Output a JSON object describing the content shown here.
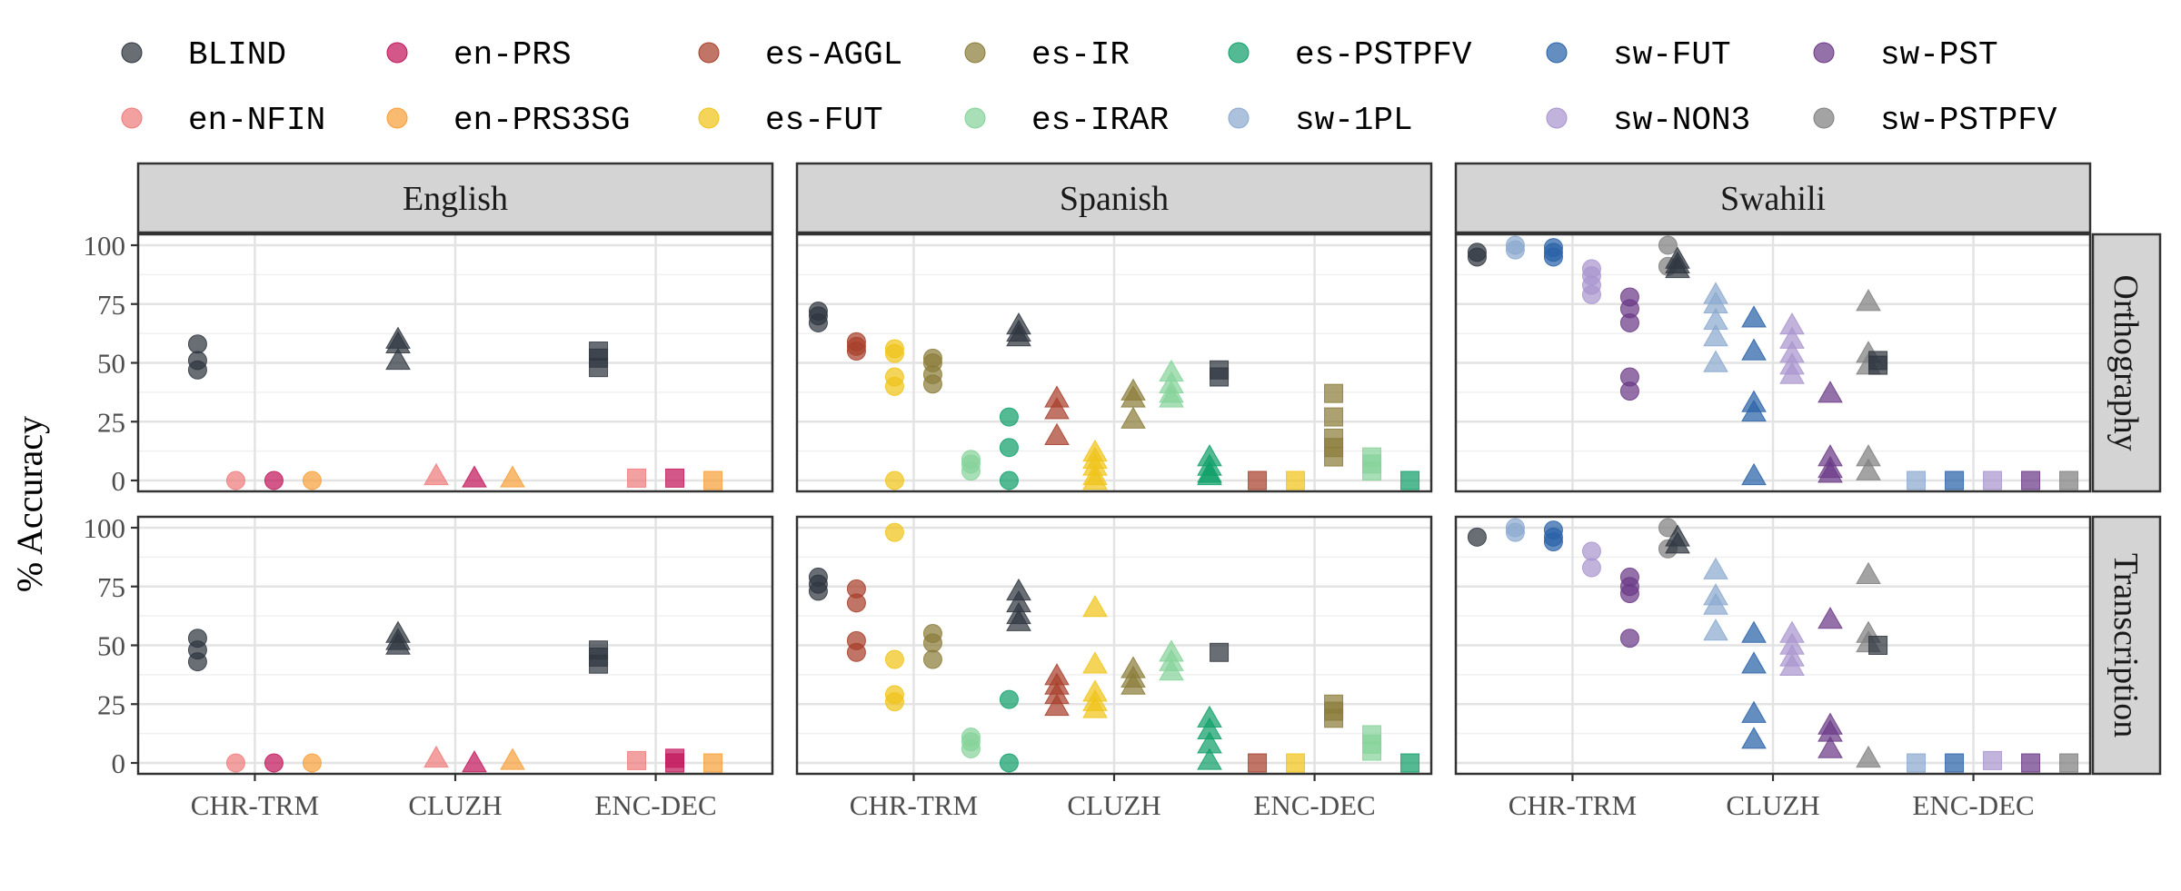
{
  "chart_data": {
    "type": "scatter",
    "ylabel": "% Accuracy",
    "ylim": [
      0,
      100
    ],
    "yticks": [
      "0",
      "25",
      "50",
      "75",
      "100"
    ],
    "models": [
      "CHR-TRM",
      "CLUZH",
      "ENC-DEC"
    ],
    "model_shapes": {
      "CHR-TRM": "circle",
      "CLUZH": "triangle",
      "ENC-DEC": "square"
    },
    "languages": [
      "English",
      "Spanish",
      "Swahili"
    ],
    "row_facets": [
      "Orthography",
      "Transcription"
    ],
    "legend": [
      {
        "name": "BLIND",
        "color": "#2f3640"
      },
      {
        "name": "en-PRS",
        "color": "#c2185b"
      },
      {
        "name": "es-AGGL",
        "color": "#a8402b"
      },
      {
        "name": "es-IR",
        "color": "#8b7d3a"
      },
      {
        "name": "es-PSTPFV",
        "color": "#11a06a"
      },
      {
        "name": "sw-FUT",
        "color": "#2a62a8"
      },
      {
        "name": "sw-PST",
        "color": "#6b3a86"
      },
      {
        "name": "en-NFIN",
        "color": "#ee7b7b"
      },
      {
        "name": "en-PRS3SG",
        "color": "#f7a03a"
      },
      {
        "name": "es-FUT",
        "color": "#f0c419"
      },
      {
        "name": "es-IRAR",
        "color": "#86d39a"
      },
      {
        "name": "sw-1PL",
        "color": "#8ba9cf"
      },
      {
        "name": "sw-NON3",
        "color": "#a995cf"
      },
      {
        "name": "sw-PSTPFV",
        "color": "#808080"
      }
    ],
    "panels": [
      {
        "language": "English",
        "facet": "Orthography",
        "groups": [
          {
            "model": "CHR-TRM",
            "cond": "BLIND",
            "values": [
              58,
              51,
              47
            ]
          },
          {
            "model": "CHR-TRM",
            "cond": "en-NFIN",
            "values": [
              0
            ]
          },
          {
            "model": "CHR-TRM",
            "cond": "en-PRS",
            "values": [
              0
            ]
          },
          {
            "model": "CHR-TRM",
            "cond": "en-PRS3SG",
            "values": [
              0
            ]
          },
          {
            "model": "CLUZH",
            "cond": "BLIND",
            "values": [
              60,
              58,
              51
            ]
          },
          {
            "model": "CLUZH",
            "cond": "en-NFIN",
            "values": [
              2
            ]
          },
          {
            "model": "CLUZH",
            "cond": "en-PRS",
            "values": [
              1
            ]
          },
          {
            "model": "CLUZH",
            "cond": "en-PRS3SG",
            "values": [
              1
            ]
          },
          {
            "model": "ENC-DEC",
            "cond": "BLIND",
            "values": [
              55,
              52,
              48
            ]
          },
          {
            "model": "ENC-DEC",
            "cond": "en-NFIN",
            "values": [
              1
            ]
          },
          {
            "model": "ENC-DEC",
            "cond": "en-PRS",
            "values": [
              1
            ]
          },
          {
            "model": "ENC-DEC",
            "cond": "en-PRS3SG",
            "values": [
              0
            ]
          }
        ]
      },
      {
        "language": "Spanish",
        "facet": "Orthography",
        "groups": [
          {
            "model": "CHR-TRM",
            "cond": "BLIND",
            "values": [
              72,
              70,
              67
            ]
          },
          {
            "model": "CHR-TRM",
            "cond": "es-AGGL",
            "values": [
              59,
              57,
              55
            ]
          },
          {
            "model": "CHR-TRM",
            "cond": "es-FUT",
            "values": [
              56,
              54,
              44,
              40,
              0
            ]
          },
          {
            "model": "CHR-TRM",
            "cond": "es-IR",
            "values": [
              52,
              50,
              45,
              41
            ]
          },
          {
            "model": "CHR-TRM",
            "cond": "es-IRAR",
            "values": [
              9,
              7,
              4
            ]
          },
          {
            "model": "CHR-TRM",
            "cond": "es-PSTPFV",
            "values": [
              27,
              14,
              0
            ]
          },
          {
            "model": "CLUZH",
            "cond": "BLIND",
            "values": [
              66,
              63,
              61
            ]
          },
          {
            "model": "CLUZH",
            "cond": "es-AGGL",
            "values": [
              35,
              30,
              19
            ]
          },
          {
            "model": "CLUZH",
            "cond": "es-FUT",
            "values": [
              12,
              9,
              6,
              2,
              0
            ]
          },
          {
            "model": "CLUZH",
            "cond": "es-IR",
            "values": [
              38,
              35,
              26
            ]
          },
          {
            "model": "CLUZH",
            "cond": "es-IRAR",
            "values": [
              46,
              41,
              37,
              35
            ]
          },
          {
            "model": "CLUZH",
            "cond": "es-PSTPFV",
            "values": [
              10,
              6,
              3,
              2
            ]
          },
          {
            "model": "ENC-DEC",
            "cond": "BLIND",
            "values": [
              47,
              44
            ]
          },
          {
            "model": "ENC-DEC",
            "cond": "es-AGGL",
            "values": [
              0
            ]
          },
          {
            "model": "ENC-DEC",
            "cond": "es-FUT",
            "values": [
              0
            ]
          },
          {
            "model": "ENC-DEC",
            "cond": "es-IR",
            "values": [
              37,
              27,
              18,
              14,
              10
            ]
          },
          {
            "model": "ENC-DEC",
            "cond": "es-IRAR",
            "values": [
              10,
              7,
              4
            ]
          },
          {
            "model": "ENC-DEC",
            "cond": "es-PSTPFV",
            "values": [
              0
            ]
          }
        ]
      },
      {
        "language": "Swahili",
        "facet": "Orthography",
        "groups": [
          {
            "model": "CHR-TRM",
            "cond": "BLIND",
            "values": [
              97,
              95
            ]
          },
          {
            "model": "CHR-TRM",
            "cond": "sw-1PL",
            "values": [
              100,
              98
            ]
          },
          {
            "model": "CHR-TRM",
            "cond": "sw-FUT",
            "values": [
              99,
              97,
              95
            ]
          },
          {
            "model": "CHR-TRM",
            "cond": "sw-NON3",
            "values": [
              90,
              87,
              83,
              79
            ]
          },
          {
            "model": "CHR-TRM",
            "cond": "sw-PST",
            "values": [
              78,
              73,
              67,
              44,
              38
            ]
          },
          {
            "model": "CHR-TRM",
            "cond": "sw-PSTPFV",
            "values": [
              100,
              91
            ]
          },
          {
            "model": "CLUZH",
            "cond": "BLIND",
            "values": [
              94,
              92,
              90
            ]
          },
          {
            "model": "CLUZH",
            "cond": "sw-1PL",
            "values": [
              79,
              75,
              68,
              61,
              50
            ]
          },
          {
            "model": "CLUZH",
            "cond": "sw-FUT",
            "values": [
              69,
              55,
              33,
              29,
              2
            ]
          },
          {
            "model": "CLUZH",
            "cond": "sw-NON3",
            "values": [
              66,
              60,
              54,
              49,
              45
            ]
          },
          {
            "model": "CLUZH",
            "cond": "sw-PST",
            "values": [
              37,
              10,
              5,
              3
            ]
          },
          {
            "model": "CLUZH",
            "cond": "sw-PSTPFV",
            "values": [
              76,
              54,
              49,
              10,
              4
            ]
          },
          {
            "model": "ENC-DEC",
            "cond": "BLIND",
            "values": [
              51,
              49
            ]
          },
          {
            "model": "ENC-DEC",
            "cond": "sw-1PL",
            "values": [
              0
            ]
          },
          {
            "model": "ENC-DEC",
            "cond": "sw-FUT",
            "values": [
              0
            ]
          },
          {
            "model": "ENC-DEC",
            "cond": "sw-NON3",
            "values": [
              0
            ]
          },
          {
            "model": "ENC-DEC",
            "cond": "sw-PST",
            "values": [
              0
            ]
          },
          {
            "model": "ENC-DEC",
            "cond": "sw-PSTPFV",
            "values": [
              0
            ]
          }
        ]
      },
      {
        "language": "English",
        "facet": "Transcription",
        "groups": [
          {
            "model": "CHR-TRM",
            "cond": "BLIND",
            "values": [
              53,
              48,
              43
            ]
          },
          {
            "model": "CHR-TRM",
            "cond": "en-NFIN",
            "values": [
              0
            ]
          },
          {
            "model": "CHR-TRM",
            "cond": "en-PRS",
            "values": [
              0
            ]
          },
          {
            "model": "CHR-TRM",
            "cond": "en-PRS3SG",
            "values": [
              0
            ]
          },
          {
            "model": "CLUZH",
            "cond": "BLIND",
            "values": [
              55,
              52,
              50
            ]
          },
          {
            "model": "CLUZH",
            "cond": "en-NFIN",
            "values": [
              2
            ]
          },
          {
            "model": "CLUZH",
            "cond": "en-PRS",
            "values": [
              0
            ]
          },
          {
            "model": "CLUZH",
            "cond": "en-PRS3SG",
            "values": [
              1
            ]
          },
          {
            "model": "ENC-DEC",
            "cond": "BLIND",
            "values": [
              48,
              45,
              42
            ]
          },
          {
            "model": "ENC-DEC",
            "cond": "en-NFIN",
            "values": [
              1
            ]
          },
          {
            "model": "ENC-DEC",
            "cond": "en-PRS",
            "values": [
              2,
              0
            ]
          },
          {
            "model": "ENC-DEC",
            "cond": "en-PRS3SG",
            "values": [
              0
            ]
          }
        ]
      },
      {
        "language": "Spanish",
        "facet": "Transcription",
        "groups": [
          {
            "model": "CHR-TRM",
            "cond": "BLIND",
            "values": [
              79,
              76,
              73
            ]
          },
          {
            "model": "CHR-TRM",
            "cond": "es-AGGL",
            "values": [
              74,
              68,
              52,
              47
            ]
          },
          {
            "model": "CHR-TRM",
            "cond": "es-FUT",
            "values": [
              98,
              44,
              29,
              26
            ]
          },
          {
            "model": "CHR-TRM",
            "cond": "es-IR",
            "values": [
              55,
              51,
              44
            ]
          },
          {
            "model": "CHR-TRM",
            "cond": "es-IRAR",
            "values": [
              11,
              9,
              6
            ]
          },
          {
            "model": "CHR-TRM",
            "cond": "es-PSTPFV",
            "values": [
              27,
              0
            ]
          },
          {
            "model": "CLUZH",
            "cond": "BLIND",
            "values": [
              73,
              68,
              63,
              60
            ]
          },
          {
            "model": "CLUZH",
            "cond": "es-AGGL",
            "values": [
              37,
              33,
              29,
              24
            ]
          },
          {
            "model": "CLUZH",
            "cond": "es-FUT",
            "values": [
              66,
              42,
              30,
              26,
              23
            ]
          },
          {
            "model": "CLUZH",
            "cond": "es-IR",
            "values": [
              40,
              36,
              33
            ]
          },
          {
            "model": "CLUZH",
            "cond": "es-IRAR",
            "values": [
              47,
              43,
              39
            ]
          },
          {
            "model": "CLUZH",
            "cond": "es-PSTPFV",
            "values": [
              19,
              14,
              8,
              1
            ]
          },
          {
            "model": "ENC-DEC",
            "cond": "BLIND",
            "values": [
              47
            ]
          },
          {
            "model": "ENC-DEC",
            "cond": "es-AGGL",
            "values": [
              0
            ]
          },
          {
            "model": "ENC-DEC",
            "cond": "es-FUT",
            "values": [
              0
            ]
          },
          {
            "model": "ENC-DEC",
            "cond": "es-IR",
            "values": [
              25,
              22,
              19
            ]
          },
          {
            "model": "ENC-DEC",
            "cond": "es-IRAR",
            "values": [
              12,
              8,
              5
            ]
          },
          {
            "model": "ENC-DEC",
            "cond": "es-PSTPFV",
            "values": [
              0
            ]
          }
        ]
      },
      {
        "language": "Swahili",
        "facet": "Transcription",
        "groups": [
          {
            "model": "CHR-TRM",
            "cond": "BLIND",
            "values": [
              96
            ]
          },
          {
            "model": "CHR-TRM",
            "cond": "sw-1PL",
            "values": [
              100,
              98
            ]
          },
          {
            "model": "CHR-TRM",
            "cond": "sw-FUT",
            "values": [
              99,
              96,
              94
            ]
          },
          {
            "model": "CHR-TRM",
            "cond": "sw-NON3",
            "values": [
              90,
              83
            ]
          },
          {
            "model": "CHR-TRM",
            "cond": "sw-PST",
            "values": [
              79,
              75,
              72,
              53
            ]
          },
          {
            "model": "CHR-TRM",
            "cond": "sw-PSTPFV",
            "values": [
              100,
              91
            ]
          },
          {
            "model": "CLUZH",
            "cond": "BLIND",
            "values": [
              96,
              93
            ]
          },
          {
            "model": "CLUZH",
            "cond": "sw-1PL",
            "values": [
              82,
              71,
              67,
              56
            ]
          },
          {
            "model": "CLUZH",
            "cond": "sw-FUT",
            "values": [
              55,
              42,
              21,
              10
            ]
          },
          {
            "model": "CLUZH",
            "cond": "sw-NON3",
            "values": [
              55,
              50,
              45,
              41
            ]
          },
          {
            "model": "CLUZH",
            "cond": "sw-PST",
            "values": [
              61,
              16,
              13,
              6
            ]
          },
          {
            "model": "CLUZH",
            "cond": "sw-PSTPFV",
            "values": [
              80,
              55,
              51,
              2
            ]
          },
          {
            "model": "ENC-DEC",
            "cond": "BLIND",
            "values": [
              50
            ]
          },
          {
            "model": "ENC-DEC",
            "cond": "sw-1PL",
            "values": [
              0
            ]
          },
          {
            "model": "ENC-DEC",
            "cond": "sw-FUT",
            "values": [
              0
            ]
          },
          {
            "model": "ENC-DEC",
            "cond": "sw-NON3",
            "values": [
              1
            ]
          },
          {
            "model": "ENC-DEC",
            "cond": "sw-PST",
            "values": [
              0
            ]
          },
          {
            "model": "ENC-DEC",
            "cond": "sw-PSTPFV",
            "values": [
              0
            ]
          }
        ]
      }
    ]
  }
}
